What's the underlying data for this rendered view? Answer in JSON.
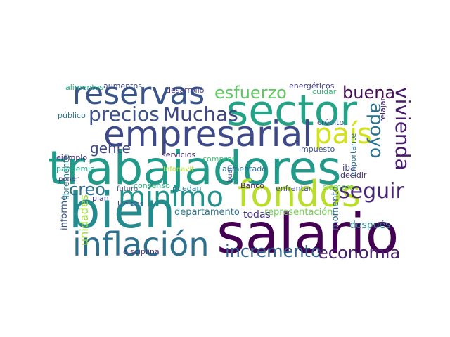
{
  "words": [
    {
      "text": "trabajadores",
      "color": "#23998a"
    },
    {
      "text": "salario",
      "color": "#440154"
    },
    {
      "text": "sector",
      "color": "#25a386"
    },
    {
      "text": "bien",
      "color": "#238a8d"
    },
    {
      "text": "empresarial",
      "color": "#3e4989"
    },
    {
      "text": "inflación",
      "color": "#2d708e"
    },
    {
      "text": "reservas",
      "color": "#39558c"
    },
    {
      "text": "fondos",
      "color": "#b8de29"
    },
    {
      "text": "mínimo",
      "color": "#21918c"
    },
    {
      "text": "país",
      "color": "#d2e21b"
    },
    {
      "text": "precios",
      "color": "#3b528b"
    },
    {
      "text": "Muchas",
      "color": "#3f4788"
    },
    {
      "text": "incremento",
      "color": "#33638d"
    },
    {
      "text": "economía",
      "color": "#481f70"
    },
    {
      "text": "vivienda",
      "color": "#481b6d"
    },
    {
      "text": "seguir",
      "color": "#482475"
    },
    {
      "text": "apoyo",
      "color": "#2c728e"
    },
    {
      "text": "buena",
      "color": "#440d58"
    },
    {
      "text": "esfuerzo",
      "color": "#5ec962"
    },
    {
      "text": "creo",
      "color": "#2e6e8e"
    },
    {
      "text": "gente",
      "color": "#3e4a89"
    },
    {
      "text": "departamento",
      "color": "#2b748e"
    },
    {
      "text": "representación",
      "color": "#73d055"
    },
    {
      "text": "todas",
      "color": "#46337e"
    },
    {
      "text": "después",
      "color": "#24878e"
    },
    {
      "text": "momento",
      "color": "#31688e"
    },
    {
      "text": "informe",
      "color": "#39568c"
    },
    {
      "text": "libremente",
      "color": "#277f8e"
    },
    {
      "text": "unidades",
      "color": "#9fda3a"
    },
    {
      "text": "pandemia",
      "color": "#22a785"
    },
    {
      "text": "ejemplo",
      "color": "#46307e"
    },
    {
      "text": "público",
      "color": "#2a768e"
    },
    {
      "text": "alimentos",
      "color": "#29af7f"
    },
    {
      "text": "aumentos",
      "color": "#3d4d8a"
    },
    {
      "text": "desarrollo",
      "color": "#443a83"
    },
    {
      "text": "energéticos",
      "color": "#433e85"
    },
    {
      "text": "cuidar",
      "color": "#35b779"
    },
    {
      "text": "relajar",
      "color": "#482677"
    },
    {
      "text": "importante",
      "color": "#2f6b8e"
    },
    {
      "text": "impuesto",
      "color": "#3b528b"
    },
    {
      "text": "crédito",
      "color": "#3a538b"
    },
    {
      "text": "iba",
      "color": "#404688"
    },
    {
      "text": "decidir",
      "color": "#472f7d"
    },
    {
      "text": "enfrentar",
      "color": "#3e4c8a"
    },
    {
      "text": "siempre",
      "color": "#75d054"
    },
    {
      "text": "Banco",
      "color": "#482374"
    },
    {
      "text": "puedan",
      "color": "#2a778e"
    },
    {
      "text": "comprar",
      "color": "#3bbb75"
    },
    {
      "text": "servicios",
      "color": "#472d7b"
    },
    {
      "text": "aumentado",
      "color": "#2e6f8e"
    },
    {
      "text": "Infonavit",
      "color": "#b5de2b"
    },
    {
      "text": "consenso",
      "color": "#2fb47c"
    },
    {
      "text": "futuro",
      "color": "#38598c"
    },
    {
      "text": "plan",
      "color": "#404387"
    },
    {
      "text": "Unidos",
      "color": "#3c508b"
    },
    {
      "text": "disciplina",
      "color": "#46337f"
    },
    {
      "text": "poner",
      "color": "#414287"
    },
    {
      "text": "buen",
      "color": "#3d4e8a"
    }
  ]
}
